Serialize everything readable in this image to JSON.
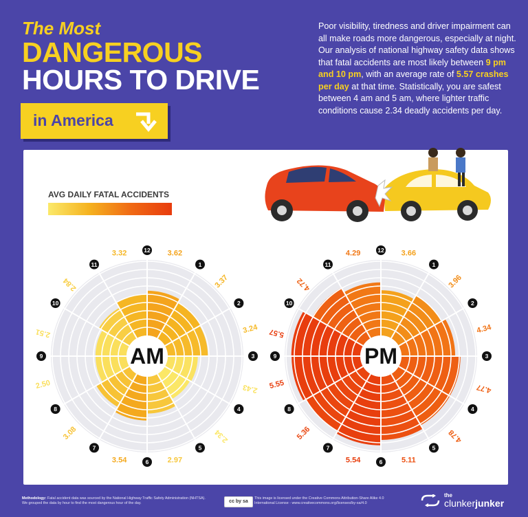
{
  "header": {
    "title_small": "The Most",
    "title_line1": "DANGEROUS",
    "title_line2": "HOURS TO DRIVE",
    "badge": "in America"
  },
  "intro": {
    "p1": "Poor visibility, tiredness and driver impairment can all make roads more dangerous, especially at night. Our analysis of national highway safety data shows that fatal accidents are most likely between ",
    "hl1": "9 pm and 10 pm",
    "p2": ", with an average rate of ",
    "hl2": "5.57 crashes per day",
    "p3": " at that time. Statistically, you are safest between 4 am and 5 am, where lighter traffic conditions cause 2.34 deadly accidents per day."
  },
  "legend": {
    "title": "AVG DAILY FATAL ACCIDENTS"
  },
  "chart_data": [
    {
      "type": "polar-bar",
      "center_label": "AM",
      "hour_labels": [
        "12",
        "1",
        "2",
        "3",
        "4",
        "5",
        "6",
        "7",
        "8",
        "9",
        "10",
        "11"
      ],
      "values": [
        3.62,
        3.37,
        3.24,
        2.43,
        2.34,
        2.97,
        3.54,
        3.08,
        2.5,
        2.51,
        2.84,
        3.32
      ],
      "value_labels": [
        "3.62",
        "3.37",
        "3.24",
        "2.43",
        "2.34",
        "2.97",
        "3.54",
        "3.08",
        "2.50",
        "2.51",
        "2.84",
        "3.32"
      ],
      "rmax": 6,
      "color_scale": [
        "#fbe96a",
        "#f5b21f",
        "#f06a14",
        "#e83c0e"
      ]
    },
    {
      "type": "polar-bar",
      "center_label": "PM",
      "hour_labels": [
        "12",
        "1",
        "2",
        "3",
        "4",
        "5",
        "6",
        "7",
        "8",
        "9",
        "10",
        "11"
      ],
      "values": [
        3.66,
        3.96,
        4.34,
        4.77,
        4.78,
        5.11,
        5.54,
        5.36,
        5.55,
        5.57,
        4.72,
        4.29
      ],
      "value_labels": [
        "3.66",
        "3.96",
        "4.34",
        "4.77",
        "4.78",
        "5.11",
        "5.54",
        "5.36",
        "5.55",
        "5.57",
        "4.72",
        "4.29"
      ],
      "rmax": 6,
      "color_scale": [
        "#fbe96a",
        "#f5b21f",
        "#f06a14",
        "#e83c0e"
      ]
    }
  ],
  "footer": {
    "methodology_label": "Methodology:",
    "methodology": " Fatal accident data was sourced by the National Highway Traffic Safety Administration (NHTSA). We grouped the data by hour to find the most dangerous hour of the day.",
    "license_badge": "cc by sa",
    "license": "This image is licensed under the Creative Commons Attribution-Share Alike 4.0 International License - www.creativecommons.org/licenses/by-sa/4.0",
    "brand_the": "the",
    "brand_part1": "clunker",
    "brand_part2": "junker"
  },
  "colors": {
    "background": "#4b45a8",
    "accent": "#f7d021",
    "ring_bg": "#e9e9ee"
  }
}
